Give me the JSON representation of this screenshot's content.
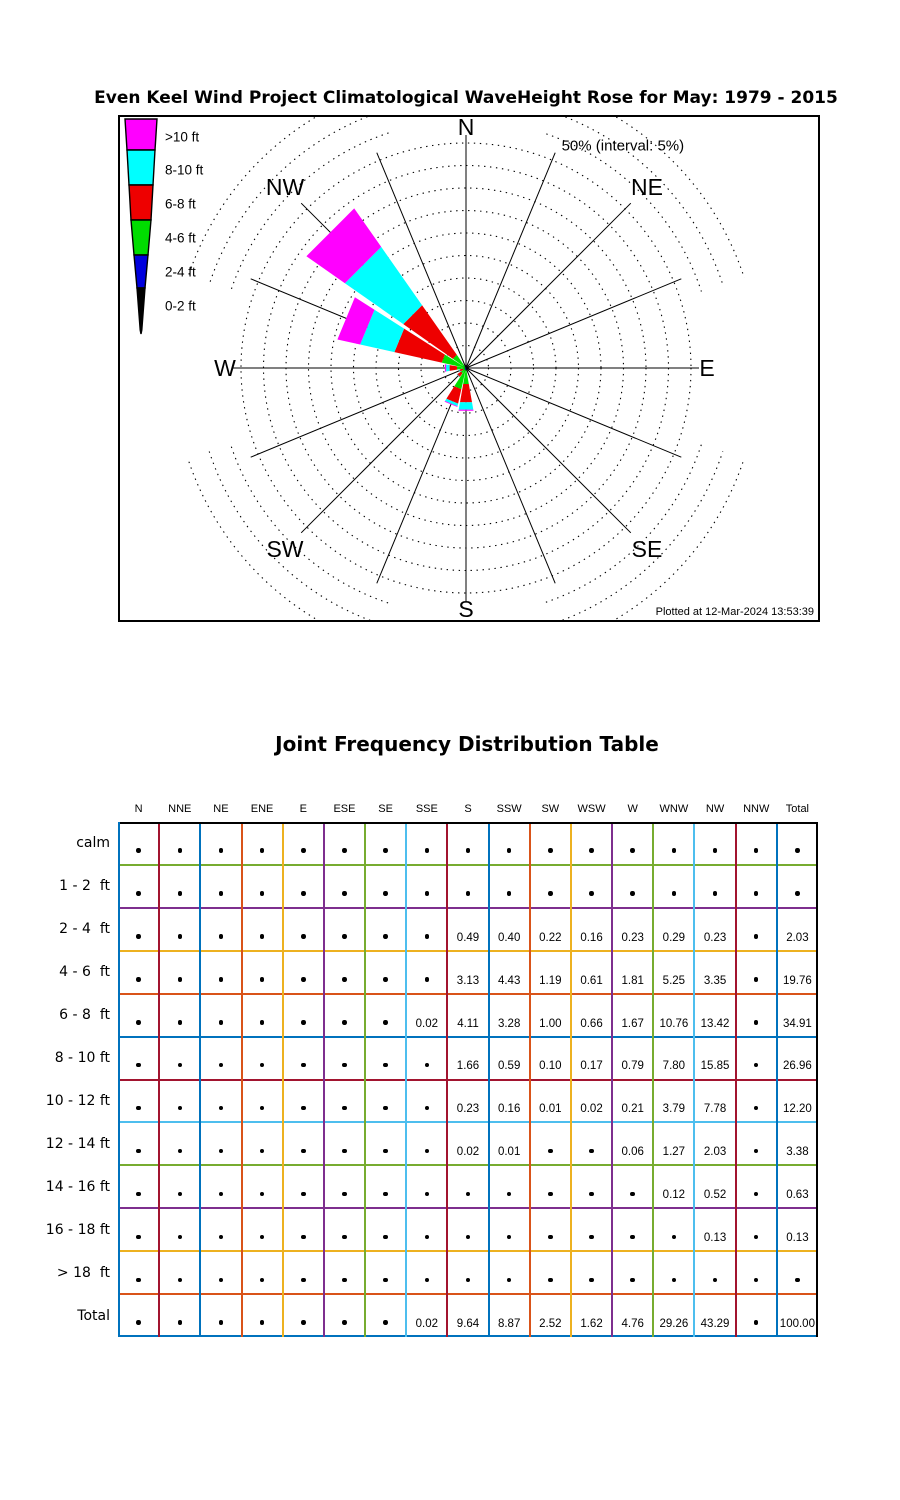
{
  "chart_data": [
    {
      "type": "bar",
      "subtype": "polar-wave-rose",
      "title": "Even Keel Wind Project Climatological WaveHeight Rose for May: 1979 - 2015",
      "scale_label": "50% (interval: 5%)",
      "plotted_at": "Plotted at 12-Mar-2024 13:53:39",
      "ring_max_pct": 50,
      "ring_interval_pct": 5,
      "grid": "dotted-rings-16-spokes",
      "compass_labels": [
        "N",
        "NE",
        "E",
        "SE",
        "S",
        "SW",
        "W",
        "NW"
      ],
      "directions": [
        "N",
        "NNE",
        "NE",
        "ENE",
        "E",
        "ESE",
        "SE",
        "SSE",
        "S",
        "SSW",
        "SW",
        "WSW",
        "W",
        "WNW",
        "NW",
        "NNW"
      ],
      "series": [
        {
          "name": "0-2 ft",
          "color": "#000000",
          "values": [
            0,
            0,
            0,
            0,
            0,
            0,
            0,
            0,
            0,
            0,
            0,
            0,
            0,
            0,
            0,
            0
          ]
        },
        {
          "name": "2-4 ft",
          "color": "#0000DD",
          "values": [
            0,
            0,
            0,
            0,
            0,
            0,
            0,
            0,
            0.49,
            0.4,
            0.22,
            0.16,
            0.23,
            0.29,
            0.23,
            0
          ]
        },
        {
          "name": "4-6 ft",
          "color": "#00DD00",
          "values": [
            0,
            0,
            0,
            0,
            0,
            0,
            0,
            0,
            3.13,
            4.43,
            1.19,
            0.61,
            1.81,
            5.25,
            3.35,
            0
          ]
        },
        {
          "name": "6-8 ft",
          "color": "#EE0000",
          "values": [
            0,
            0,
            0,
            0,
            0,
            0,
            0,
            0.02,
            4.11,
            3.28,
            1.0,
            0.66,
            1.67,
            10.76,
            13.42,
            0
          ]
        },
        {
          "name": "8-10 ft",
          "color": "#00FFFF",
          "values": [
            0,
            0,
            0,
            0,
            0,
            0,
            0,
            0,
            1.66,
            0.59,
            0.1,
            0.17,
            0.79,
            7.8,
            15.85,
            0
          ]
        },
        {
          "name": ">10 ft",
          "color": "#FF00FF",
          "values": [
            0,
            0,
            0,
            0,
            0,
            0,
            0,
            0,
            0.25,
            0.17,
            0.01,
            0.02,
            0.27,
            5.18,
            10.46,
            0
          ]
        }
      ],
      "legend": [
        {
          "label": ">10 ft",
          "color": "#FF00FF"
        },
        {
          "label": "8-10 ft",
          "color": "#00FFFF"
        },
        {
          "label": "6-8 ft",
          "color": "#EE0000"
        },
        {
          "label": "4-6 ft",
          "color": "#00DD00"
        },
        {
          "label": "2-4 ft",
          "color": "#0000DD"
        },
        {
          "label": "0-2 ft",
          "color": "#000000"
        }
      ]
    },
    {
      "type": "table",
      "title": "Joint Frequency Distribution Table",
      "columns": [
        "N",
        "NNE",
        "NE",
        "ENE",
        "E",
        "ESE",
        "SE",
        "SSE",
        "S",
        "SSW",
        "SW",
        "WSW",
        "W",
        "WNW",
        "NW",
        "NNW",
        "Total"
      ],
      "empty_marker": "dot",
      "rows": [
        {
          "label": "calm",
          "values": [
            null,
            null,
            null,
            null,
            null,
            null,
            null,
            null,
            null,
            null,
            null,
            null,
            null,
            null,
            null,
            null,
            null
          ]
        },
        {
          "label": "1 - 2  ft",
          "values": [
            null,
            null,
            null,
            null,
            null,
            null,
            null,
            null,
            null,
            null,
            null,
            null,
            null,
            null,
            null,
            null,
            null
          ]
        },
        {
          "label": "2 - 4  ft",
          "values": [
            null,
            null,
            null,
            null,
            null,
            null,
            null,
            null,
            "0.49",
            "0.40",
            "0.22",
            "0.16",
            "0.23",
            "0.29",
            "0.23",
            null,
            "2.03"
          ]
        },
        {
          "label": "4 - 6  ft",
          "values": [
            null,
            null,
            null,
            null,
            null,
            null,
            null,
            null,
            "3.13",
            "4.43",
            "1.19",
            "0.61",
            "1.81",
            "5.25",
            "3.35",
            null,
            "19.76"
          ]
        },
        {
          "label": "6 - 8  ft",
          "values": [
            null,
            null,
            null,
            null,
            null,
            null,
            null,
            "0.02",
            "4.11",
            "3.28",
            "1.00",
            "0.66",
            "1.67",
            "10.76",
            "13.42",
            null,
            "34.91"
          ]
        },
        {
          "label": "8 - 10 ft",
          "values": [
            null,
            null,
            null,
            null,
            null,
            null,
            null,
            null,
            "1.66",
            "0.59",
            "0.10",
            "0.17",
            "0.79",
            "7.80",
            "15.85",
            null,
            "26.96"
          ]
        },
        {
          "label": "10 - 12 ft",
          "values": [
            null,
            null,
            null,
            null,
            null,
            null,
            null,
            null,
            "0.23",
            "0.16",
            "0.01",
            "0.02",
            "0.21",
            "3.79",
            "7.78",
            null,
            "12.20"
          ]
        },
        {
          "label": "12 - 14 ft",
          "values": [
            null,
            null,
            null,
            null,
            null,
            null,
            null,
            null,
            "0.02",
            "0.01",
            null,
            null,
            "0.06",
            "1.27",
            "2.03",
            null,
            "3.38"
          ]
        },
        {
          "label": "14 - 16 ft",
          "values": [
            null,
            null,
            null,
            null,
            null,
            null,
            null,
            null,
            null,
            null,
            null,
            null,
            null,
            "0.12",
            "0.52",
            null,
            "0.63"
          ]
        },
        {
          "label": "16 - 18 ft",
          "values": [
            null,
            null,
            null,
            null,
            null,
            null,
            null,
            null,
            null,
            null,
            null,
            null,
            null,
            null,
            "0.13",
            null,
            "0.13"
          ]
        },
        {
          "label": "> 18  ft",
          "values": [
            null,
            null,
            null,
            null,
            null,
            null,
            null,
            null,
            null,
            null,
            null,
            null,
            null,
            null,
            null,
            null,
            null
          ]
        },
        {
          "label": "Total",
          "values": [
            null,
            null,
            null,
            null,
            null,
            null,
            null,
            "0.02",
            "9.64",
            "8.87",
            "2.52",
            "1.62",
            "4.76",
            "29.26",
            "43.29",
            null,
            "100.00"
          ]
        }
      ],
      "grid_v_colors": [
        "#A2142F",
        "#0072BD",
        "#D95319",
        "#EDB120",
        "#7E2F8E",
        "#77AC30",
        "#4DBEEE"
      ],
      "grid_h_colors": [
        "#77AC30",
        "#7E2F8E",
        "#EDB120",
        "#D95319",
        "#0072BD",
        "#A2142F",
        "#4DBEEE"
      ],
      "border_colors": {
        "top": "#000000",
        "right": "#000000",
        "left": "#0072BD",
        "bottom": "#0072BD"
      }
    }
  ]
}
